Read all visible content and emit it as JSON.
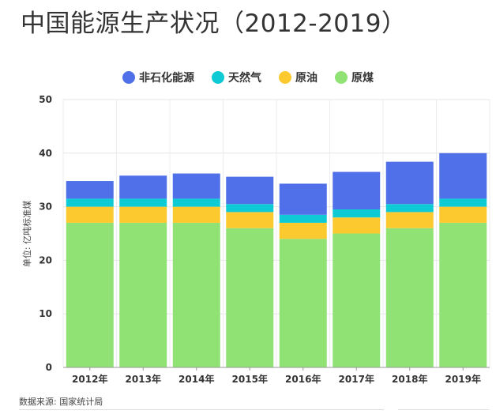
{
  "title": "中国能源生产状况（2012-2019）",
  "source": "数据来源: 国家统计局",
  "chart_data": {
    "type": "bar",
    "stacked": true,
    "title": "中国能源生产状况（2012-2019）",
    "xlabel": "",
    "ylabel": "单位: 亿吨标准煤",
    "ylim": [
      0,
      50
    ],
    "yticks": [
      0,
      10,
      20,
      30,
      40,
      50
    ],
    "grid": true,
    "legend_position": "top",
    "categories": [
      "2012年",
      "2013年",
      "2014年",
      "2015年",
      "2016年",
      "2017年",
      "2018年",
      "2019年"
    ],
    "series": [
      {
        "name": "原煤",
        "color": "#90E274",
        "values": [
          27,
          27,
          27,
          26,
          24,
          25,
          26,
          27
        ]
      },
      {
        "name": "原油",
        "color": "#FCCA2F",
        "values": [
          3,
          3,
          3,
          3,
          3,
          3,
          3,
          3
        ]
      },
      {
        "name": "天然气",
        "color": "#0ECAD4",
        "values": [
          1.5,
          1.5,
          1.5,
          1.5,
          1.5,
          1.5,
          1.5,
          1.5
        ]
      },
      {
        "name": "非石化能源",
        "color": "#4F70E8",
        "values": [
          3.3,
          4.3,
          4.7,
          5.1,
          5.8,
          7.0,
          7.9,
          8.5
        ]
      }
    ],
    "legend_order": [
      "非石化能源",
      "天然气",
      "原油",
      "原煤"
    ]
  }
}
